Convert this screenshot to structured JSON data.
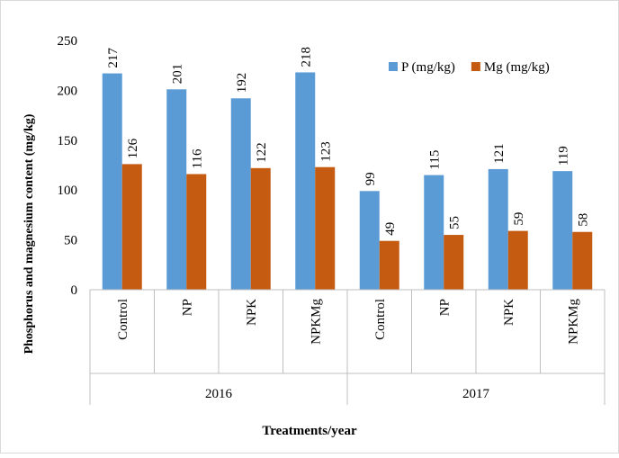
{
  "chart_data": {
    "type": "bar",
    "categories": [
      "Control",
      "NP",
      "NPK",
      "NPKMg",
      "Control",
      "NP",
      "NPK",
      "NPKMg"
    ],
    "groups": [
      "2016",
      "2017"
    ],
    "series": [
      {
        "name": "P (mg/kg)",
        "color": "#5b9bd5",
        "values": [
          217,
          201,
          192,
          218,
          99,
          115,
          121,
          119
        ]
      },
      {
        "name": "Mg (mg/kg)",
        "color": "#c55a11",
        "values": [
          126,
          116,
          122,
          123,
          49,
          55,
          59,
          58
        ]
      }
    ],
    "xlabel": "Treatments/year",
    "ylabel": "Phosphorus and magnesium content  (mg/kg)",
    "ylim": [
      0,
      250
    ],
    "yticks": [
      0,
      50,
      100,
      150,
      200,
      250
    ],
    "grid": false,
    "legend": "upper right",
    "data_labels": true
  }
}
